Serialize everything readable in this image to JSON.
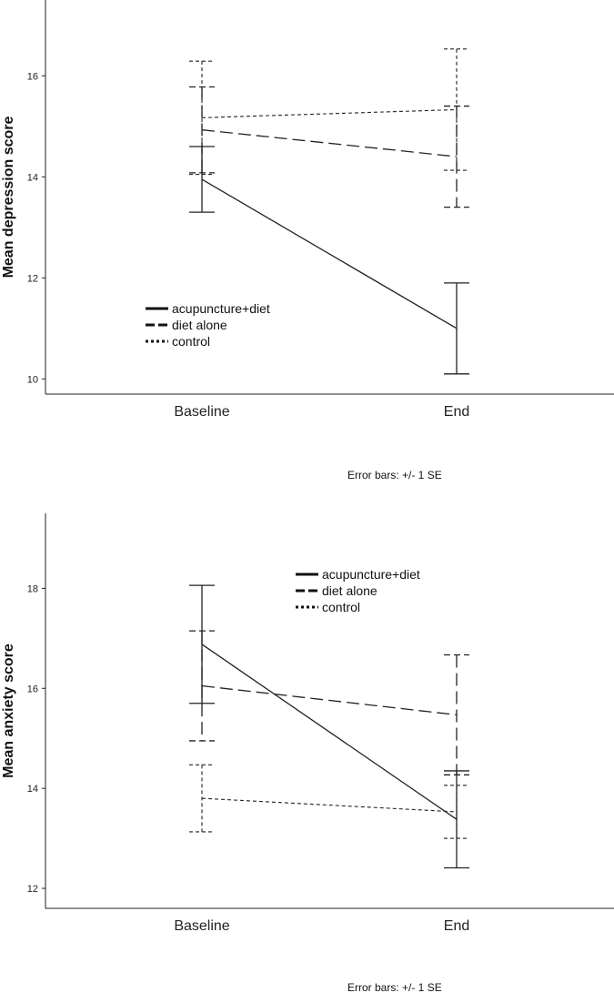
{
  "chart_data": [
    {
      "type": "line",
      "ylabel": "Mean depression score",
      "xlabel": "",
      "categories": [
        "Baseline",
        "End"
      ],
      "ylim": [
        9.7,
        17.5
      ],
      "yticks": [
        10,
        12,
        14,
        16
      ],
      "legend_position": "bottom-left",
      "note": "Error bars: +/- 1 SE",
      "series": [
        {
          "name": "acupuncture+diet",
          "style": "solid",
          "values": [
            13.95,
            11.0
          ],
          "se": [
            0.65,
            0.9
          ]
        },
        {
          "name": "diet alone",
          "style": "dashed",
          "values": [
            14.93,
            14.4
          ],
          "se": [
            0.85,
            1.0
          ]
        },
        {
          "name": "control",
          "style": "dotted",
          "values": [
            15.17,
            15.33
          ],
          "se": [
            1.12,
            1.2
          ]
        }
      ]
    },
    {
      "type": "line",
      "ylabel": "Mean anxiety score",
      "xlabel": "",
      "categories": [
        "Baseline",
        "End"
      ],
      "ylim": [
        11.6,
        19.5
      ],
      "yticks": [
        12,
        14,
        16,
        18
      ],
      "legend_position": "top-right",
      "note": "Error bars: +/- 1 SE",
      "series": [
        {
          "name": "acupuncture+diet",
          "style": "solid",
          "values": [
            16.88,
            13.38
          ],
          "se": [
            1.18,
            0.97
          ]
        },
        {
          "name": "diet alone",
          "style": "dashed",
          "values": [
            16.05,
            15.47
          ],
          "se": [
            1.1,
            1.2
          ]
        },
        {
          "name": "control",
          "style": "dotted",
          "values": [
            13.8,
            13.53
          ],
          "se": [
            0.67,
            0.53
          ]
        }
      ]
    }
  ]
}
